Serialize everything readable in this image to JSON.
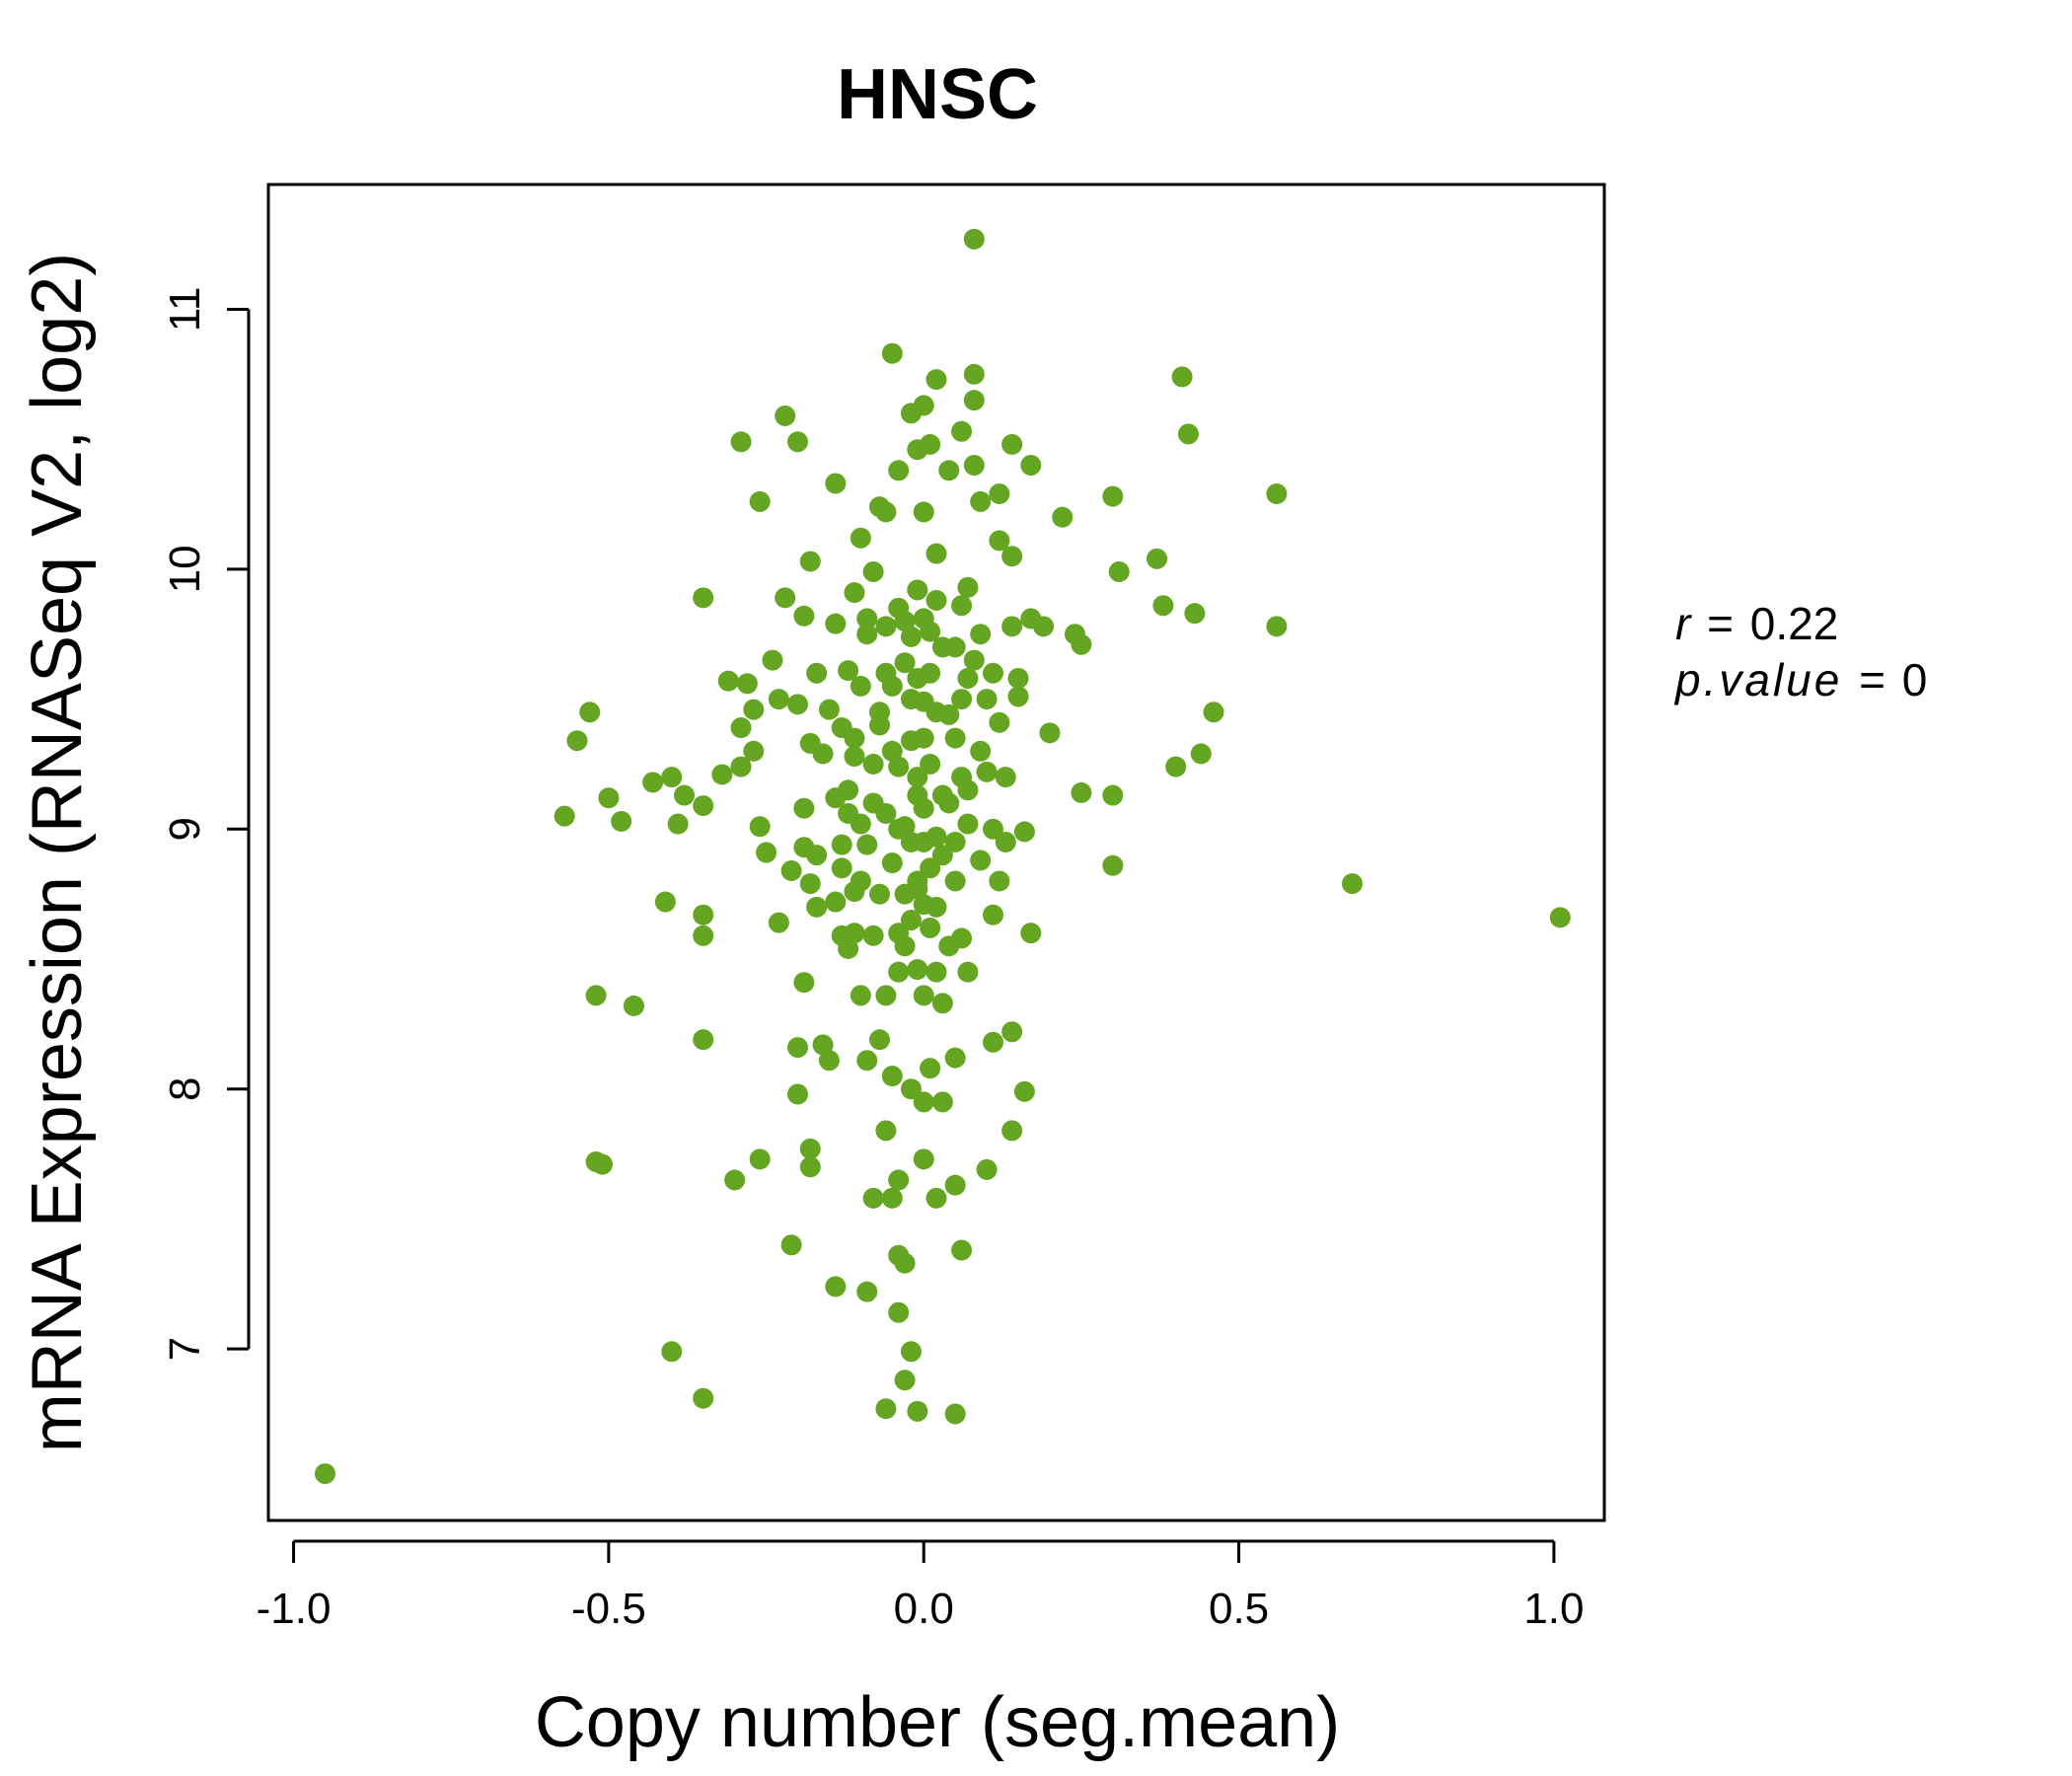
{
  "chart_data": {
    "type": "scatter",
    "title": "HNSC",
    "title_color": "#64A521",
    "point_color": "#64A521",
    "xlabel": "Copy number (seg.mean)",
    "ylabel": "mRNA Expression (RNASeq V2, log2)",
    "xlim": [
      -1.04,
      1.08
    ],
    "ylim": [
      6.34,
      11.48
    ],
    "xticks": [
      -1.0,
      -0.5,
      0.0,
      0.5,
      1.0
    ],
    "xtick_labels": [
      "-1.0",
      "-0.5",
      "0.0",
      "0.5",
      "1.0"
    ],
    "yticks": [
      7,
      8,
      9,
      10,
      11
    ],
    "ytick_labels": [
      "7",
      "8",
      "9",
      "10",
      "11"
    ],
    "grid": false,
    "legend": "none",
    "annotation": {
      "r_label": "r",
      "r_value": "0.22",
      "p_label": "p.value",
      "p_value": "0",
      "equals": "="
    },
    "points": [
      [
        -0.95,
        6.52
      ],
      [
        1.01,
        8.66
      ],
      [
        0.68,
        8.79
      ],
      [
        0.56,
        10.29
      ],
      [
        0.56,
        9.78
      ],
      [
        0.46,
        9.45
      ],
      [
        0.44,
        9.29
      ],
      [
        0.43,
        9.83
      ],
      [
        0.42,
        10.52
      ],
      [
        0.41,
        10.74
      ],
      [
        0.4,
        9.24
      ],
      [
        0.38,
        9.86
      ],
      [
        0.37,
        10.04
      ],
      [
        0.3,
        10.28
      ],
      [
        0.31,
        9.99
      ],
      [
        0.3,
        9.13
      ],
      [
        0.3,
        8.86
      ],
      [
        0.25,
        9.14
      ],
      [
        0.25,
        9.71
      ],
      [
        0.24,
        9.75
      ],
      [
        0.22,
        10.2
      ],
      [
        0.2,
        9.37
      ],
      [
        0.19,
        9.78
      ],
      [
        0.17,
        10.4
      ],
      [
        0.17,
        9.81
      ],
      [
        0.17,
        8.6
      ],
      [
        0.16,
        7.99
      ],
      [
        0.16,
        8.99
      ],
      [
        0.15,
        9.58
      ],
      [
        0.15,
        9.51
      ],
      [
        0.14,
        10.48
      ],
      [
        0.14,
        10.05
      ],
      [
        0.14,
        9.78
      ],
      [
        0.14,
        8.22
      ],
      [
        0.14,
        7.84
      ],
      [
        0.12,
        10.29
      ],
      [
        0.12,
        10.11
      ],
      [
        0.12,
        9.41
      ],
      [
        0.11,
        8.67
      ],
      [
        0.11,
        8.18
      ],
      [
        0.1,
        9.22
      ],
      [
        0.1,
        7.69
      ],
      [
        0.09,
        10.26
      ],
      [
        0.09,
        9.75
      ],
      [
        0.09,
        8.88
      ],
      [
        0.08,
        11.27
      ],
      [
        0.08,
        10.75
      ],
      [
        0.08,
        10.65
      ],
      [
        0.08,
        10.4
      ],
      [
        0.07,
        9.93
      ],
      [
        0.07,
        9.58
      ],
      [
        0.07,
        9.02
      ],
      [
        0.07,
        8.45
      ],
      [
        0.06,
        10.53
      ],
      [
        0.06,
        9.86
      ],
      [
        0.06,
        9.2
      ],
      [
        0.06,
        8.58
      ],
      [
        0.06,
        7.38
      ],
      [
        0.05,
        9.7
      ],
      [
        0.05,
        8.8
      ],
      [
        0.05,
        8.12
      ],
      [
        0.05,
        7.63
      ],
      [
        0.05,
        6.75
      ],
      [
        0.04,
        10.38
      ],
      [
        0.04,
        9.44
      ],
      [
        0.03,
        9.13
      ],
      [
        0.03,
        8.33
      ],
      [
        0.03,
        7.95
      ],
      [
        0.02,
        10.73
      ],
      [
        0.02,
        10.06
      ],
      [
        0.02,
        9.88
      ],
      [
        0.02,
        8.97
      ],
      [
        0.02,
        8.45
      ],
      [
        0.02,
        7.58
      ],
      [
        0.01,
        10.48
      ],
      [
        0.01,
        9.76
      ],
      [
        0.01,
        9.25
      ],
      [
        0.01,
        8.62
      ],
      [
        0.01,
        8.08
      ],
      [
        0.0,
        10.63
      ],
      [
        0.0,
        10.22
      ],
      [
        0.0,
        9.81
      ],
      [
        0.0,
        9.49
      ],
      [
        0.0,
        9.08
      ],
      [
        0.0,
        8.71
      ],
      [
        0.0,
        8.36
      ],
      [
        0.0,
        7.95
      ],
      [
        0.0,
        7.73
      ],
      [
        -0.01,
        10.46
      ],
      [
        -0.01,
        9.92
      ],
      [
        -0.01,
        9.58
      ],
      [
        -0.01,
        9.13
      ],
      [
        -0.01,
        8.77
      ],
      [
        -0.01,
        8.46
      ],
      [
        -0.01,
        6.76
      ],
      [
        -0.02,
        10.6
      ],
      [
        -0.02,
        9.74
      ],
      [
        -0.02,
        9.34
      ],
      [
        -0.02,
        8.95
      ],
      [
        -0.02,
        8.0
      ],
      [
        -0.02,
        6.99
      ],
      [
        -0.03,
        9.64
      ],
      [
        -0.03,
        9.01
      ],
      [
        -0.03,
        8.55
      ],
      [
        -0.03,
        7.33
      ],
      [
        -0.03,
        6.88
      ],
      [
        -0.04,
        10.38
      ],
      [
        -0.04,
        9.85
      ],
      [
        -0.04,
        9.24
      ],
      [
        -0.04,
        8.6
      ],
      [
        -0.04,
        7.65
      ],
      [
        -0.04,
        7.36
      ],
      [
        -0.04,
        7.14
      ],
      [
        -0.05,
        10.83
      ],
      [
        -0.05,
        9.55
      ],
      [
        -0.05,
        8.87
      ],
      [
        -0.05,
        8.05
      ],
      [
        -0.05,
        7.58
      ],
      [
        -0.06,
        10.22
      ],
      [
        -0.06,
        9.78
      ],
      [
        -0.06,
        9.06
      ],
      [
        -0.06,
        8.36
      ],
      [
        -0.06,
        7.84
      ],
      [
        -0.06,
        6.77
      ],
      [
        -0.07,
        10.24
      ],
      [
        -0.07,
        9.45
      ],
      [
        -0.07,
        8.75
      ],
      [
        -0.07,
        8.19
      ],
      [
        -0.08,
        9.99
      ],
      [
        -0.08,
        9.25
      ],
      [
        -0.08,
        8.59
      ],
      [
        -0.08,
        7.58
      ],
      [
        -0.09,
        9.81
      ],
      [
        -0.09,
        8.94
      ],
      [
        -0.09,
        8.11
      ],
      [
        -0.09,
        7.22
      ],
      [
        -0.1,
        10.12
      ],
      [
        -0.1,
        9.55
      ],
      [
        -0.1,
        9.02
      ],
      [
        -0.1,
        8.36
      ],
      [
        -0.11,
        9.91
      ],
      [
        -0.11,
        9.28
      ],
      [
        -0.11,
        8.76
      ],
      [
        -0.12,
        9.61
      ],
      [
        -0.12,
        9.06
      ],
      [
        -0.12,
        8.54
      ],
      [
        -0.13,
        9.39
      ],
      [
        -0.13,
        8.94
      ],
      [
        -0.13,
        8.59
      ],
      [
        -0.14,
        10.33
      ],
      [
        -0.14,
        9.79
      ],
      [
        -0.14,
        9.12
      ],
      [
        -0.14,
        8.72
      ],
      [
        -0.14,
        7.24
      ],
      [
        -0.15,
        9.46
      ],
      [
        -0.15,
        8.11
      ],
      [
        -0.16,
        9.29
      ],
      [
        -0.16,
        8.17
      ],
      [
        -0.17,
        9.6
      ],
      [
        -0.17,
        8.9
      ],
      [
        -0.17,
        8.7
      ],
      [
        -0.18,
        10.03
      ],
      [
        -0.18,
        9.33
      ],
      [
        -0.18,
        8.79
      ],
      [
        -0.18,
        7.77
      ],
      [
        -0.18,
        7.7
      ],
      [
        -0.19,
        9.82
      ],
      [
        -0.19,
        9.08
      ],
      [
        -0.19,
        8.93
      ],
      [
        -0.19,
        8.41
      ],
      [
        -0.2,
        10.49
      ],
      [
        -0.2,
        9.48
      ],
      [
        -0.2,
        8.16
      ],
      [
        -0.2,
        7.98
      ],
      [
        -0.21,
        8.84
      ],
      [
        -0.21,
        7.4
      ],
      [
        -0.22,
        10.59
      ],
      [
        -0.22,
        9.89
      ],
      [
        -0.23,
        9.5
      ],
      [
        -0.23,
        8.64
      ],
      [
        -0.24,
        9.65
      ],
      [
        -0.25,
        8.91
      ],
      [
        -0.26,
        9.01
      ],
      [
        -0.26,
        10.26
      ],
      [
        -0.26,
        7.73
      ],
      [
        -0.27,
        9.3
      ],
      [
        -0.27,
        9.46
      ],
      [
        -0.28,
        9.56
      ],
      [
        -0.29,
        9.24
      ],
      [
        -0.29,
        9.39
      ],
      [
        -0.29,
        10.49
      ],
      [
        -0.3,
        7.65
      ],
      [
        -0.31,
        9.57
      ],
      [
        -0.32,
        9.21
      ],
      [
        -0.35,
        9.89
      ],
      [
        -0.35,
        8.67
      ],
      [
        -0.35,
        8.59
      ],
      [
        -0.35,
        8.19
      ],
      [
        -0.35,
        9.09
      ],
      [
        -0.35,
        6.81
      ],
      [
        -0.38,
        9.13
      ],
      [
        -0.39,
        9.02
      ],
      [
        -0.4,
        9.2
      ],
      [
        -0.4,
        6.99
      ],
      [
        -0.41,
        8.72
      ],
      [
        -0.43,
        9.18
      ],
      [
        -0.46,
        8.32
      ],
      [
        -0.48,
        9.03
      ],
      [
        -0.5,
        9.12
      ],
      [
        -0.51,
        7.71
      ],
      [
        -0.52,
        8.36
      ],
      [
        -0.52,
        7.72
      ],
      [
        -0.53,
        9.45
      ],
      [
        -0.55,
        9.34
      ],
      [
        -0.57,
        9.05
      ],
      [
        0.0,
        9.35
      ],
      [
        0.01,
        9.6
      ],
      [
        -0.01,
        9.2
      ],
      [
        0.02,
        9.45
      ],
      [
        -0.02,
        9.5
      ],
      [
        0.03,
        9.7
      ],
      [
        -0.03,
        9.8
      ],
      [
        0.04,
        9.1
      ],
      [
        -0.04,
        9.0
      ],
      [
        0.05,
        9.35
      ],
      [
        -0.05,
        9.3
      ],
      [
        0.06,
        9.5
      ],
      [
        -0.06,
        9.6
      ],
      [
        0.07,
        9.15
      ],
      [
        -0.07,
        9.4
      ],
      [
        0.08,
        9.65
      ],
      [
        -0.08,
        9.1
      ],
      [
        0.09,
        9.3
      ],
      [
        -0.09,
        9.75
      ],
      [
        0.1,
        9.5
      ],
      [
        0.0,
        8.95
      ],
      [
        0.01,
        8.85
      ],
      [
        -0.01,
        8.8
      ],
      [
        0.02,
        8.7
      ],
      [
        -0.02,
        8.65
      ],
      [
        0.03,
        8.9
      ],
      [
        -0.03,
        8.75
      ],
      [
        0.04,
        8.55
      ],
      [
        -0.04,
        8.45
      ],
      [
        0.05,
        8.95
      ],
      [
        0.11,
        9.0
      ],
      [
        0.12,
        8.8
      ],
      [
        0.13,
        9.2
      ],
      [
        0.13,
        8.95
      ],
      [
        0.11,
        9.6
      ],
      [
        -0.11,
        9.35
      ],
      [
        -0.12,
        9.15
      ],
      [
        -0.13,
        8.85
      ],
      [
        -0.11,
        8.6
      ],
      [
        -0.1,
        8.8
      ]
    ]
  }
}
